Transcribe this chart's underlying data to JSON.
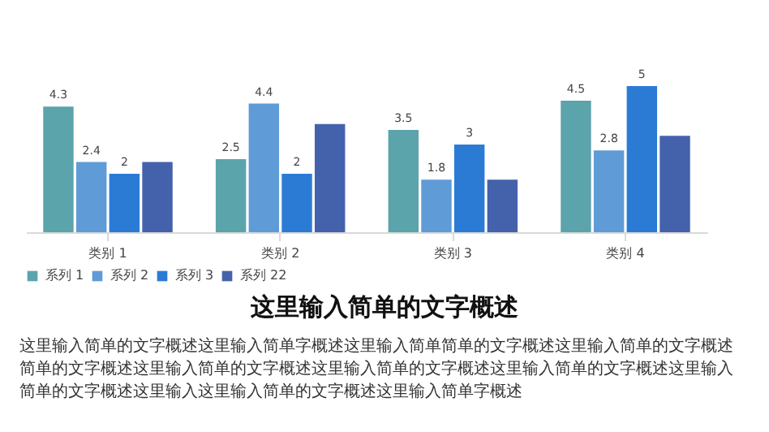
{
  "chart_data": {
    "type": "bar",
    "title": "这里输入简单的文字概述",
    "categories": [
      "类别 1",
      "类别 2",
      "类别 3",
      "类别 4"
    ],
    "series": [
      {
        "name": "系列 1",
        "color": "#5ca4ab",
        "values": [
          4.3,
          2.5,
          3.5,
          4.5
        ],
        "value_labels": [
          "4.3",
          "2.5",
          "3.5",
          "4.5"
        ]
      },
      {
        "name": "系列 2",
        "color": "#5f9bd6",
        "values": [
          2.4,
          4.4,
          1.8,
          2.8
        ],
        "value_labels": [
          "2.4",
          "4.4",
          "1.8",
          "2.8"
        ]
      },
      {
        "name": "系列 3",
        "color": "#2b7bd5",
        "values": [
          2,
          2,
          3,
          5
        ],
        "value_labels": [
          "2",
          "2",
          "3",
          "5"
        ]
      },
      {
        "name": "系列 22",
        "color": "#4462ab",
        "values": [
          2.4,
          3.7,
          1.8,
          3.3
        ]
      }
    ],
    "legend": "bottom",
    "annotations": [
      "这里输入简单的文字概述这里输入简单字概述这里输入简单简单的文字概述这里输入简单的文字概述",
      "简单的文字概述这里输入简单的文字概述这里输入简单的文字概述这里输入简单的文字概述这里输入",
      "简单的文字概述这里输入这里输入简单的文字概述这里输入简单字概述"
    ]
  }
}
